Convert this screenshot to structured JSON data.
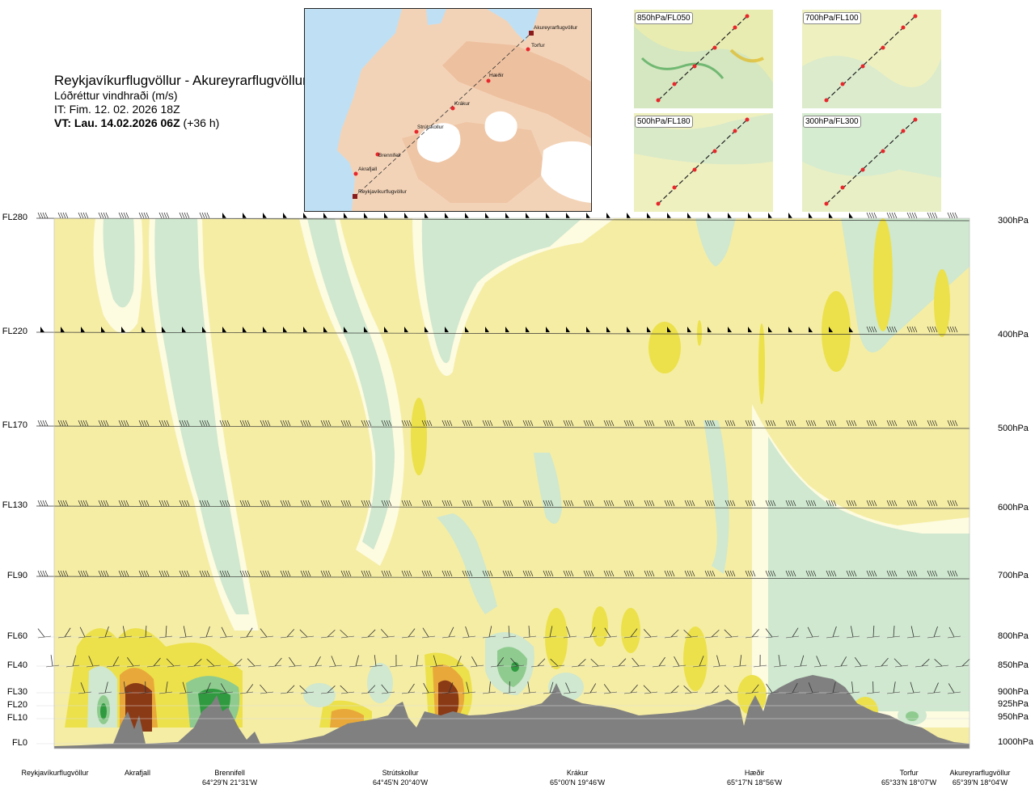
{
  "title": {
    "route": "Reykjavíkurflugvöllur - Akureyrarflugvöllur",
    "variable": "Lóðréttur vindhraði (m/s)",
    "it": "IT: Fim. 12. 02. 2026 18Z",
    "vt_bold": "VT: Lau. 14.02.2026 06Z",
    "vt_rest": " (+36 h)"
  },
  "map": {
    "waypoints": [
      "Reykjavíkurflugvöllur",
      "Akrafjall",
      "Brennifell",
      "Strútskollur",
      "Krákur",
      "Hæðir",
      "Torfur",
      "Akureyrarflugvöllur"
    ],
    "colors": {
      "sea": "#bfe0f4",
      "land": "#f4d4b8",
      "highland": "#eab894",
      "ice": "#ffffff",
      "route": "#333333",
      "point": "#e8262b"
    }
  },
  "mini_maps": [
    {
      "label": "850hPa/FL050"
    },
    {
      "label": "700hPa/FL100"
    },
    {
      "label": "500hPa/FL180"
    },
    {
      "label": "300hPa/FL300"
    }
  ],
  "chart_data": {
    "type": "heatmap",
    "variable": "Lóðréttur vindhraði (m/s)",
    "flight_levels": [
      "FL280",
      "FL220",
      "FL170",
      "FL130",
      "FL90",
      "FL60",
      "FL40",
      "FL30",
      "FL20",
      "FL10",
      "FL0"
    ],
    "pressure_levels": [
      "300hPa",
      "400hPa",
      "500hPa",
      "600hPa",
      "700hPa",
      "800hPa",
      "850hPa",
      "900hPa",
      "925hPa",
      "950hPa",
      "1000hPa"
    ],
    "x_locations": [
      {
        "name": "Reykjavíkurflugvöllur",
        "coord": ""
      },
      {
        "name": "Akrafjall",
        "coord": ""
      },
      {
        "name": "Brennifell",
        "coord": "64°29'N 21°31'W"
      },
      {
        "name": "Strútskollur",
        "coord": "64°45'N 20°40'W"
      },
      {
        "name": "Krákur",
        "coord": "65°00'N 19°46'W"
      },
      {
        "name": "Hæðir",
        "coord": "65°17'N 18°56'W"
      },
      {
        "name": "Torfur",
        "coord": "65°33'N 18°07'W"
      },
      {
        "name": "Akureyrarflugvöllur",
        "coord": "65°39'N 18°04'W"
      }
    ],
    "colors": {
      "light_yellow": "#f5eda4",
      "pale_yellow": "#fdfbe0",
      "pale_green": "#eef8e6",
      "light_green": "#cfe8cf",
      "green": "#8fcb8f",
      "dark_green": "#2f9a3f",
      "yellow": "#ece14a",
      "orange": "#e9a93a",
      "brown": "#8b3a16",
      "terrain": "#808080"
    }
  }
}
